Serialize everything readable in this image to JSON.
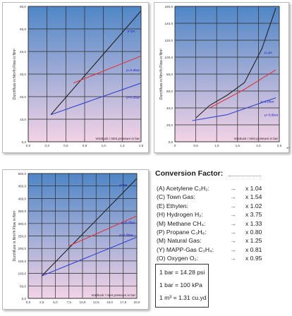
{
  "charts": [
    {
      "ylabel": "Durchfluss in Nm³/h Flow in Nm³",
      "xlabel": "Vordruck / Inlet pressure in bar",
      "x_ticks": [
        "0,0",
        "0,3",
        "0,5",
        "0,8",
        "1,0",
        "1,3",
        "1,5"
      ],
      "y_ticks": [
        "0,0",
        "10,0",
        "20,0",
        "30,0",
        "40,0",
        "50,0",
        "60,0"
      ],
      "series_labels": [
        "p=px",
        "p=0,6bar",
        "p=0,3bar"
      ]
    },
    {
      "ylabel": "Durchfluss in Nm³/h Flow in Nm³",
      "xlabel": "Vordruck / Inlet pressure in bar",
      "x_ticks": [
        "0",
        "0,5",
        "1,0",
        "1,5",
        "2,0",
        "2,5"
      ],
      "y_ticks": [
        "0,0",
        "20,0",
        "40,0",
        "60,0",
        "80,0",
        "100,0",
        "120,0",
        "140,0",
        "160,0"
      ],
      "series_labels": [
        "p=px",
        "p=1,0bar",
        "p=0,6bar"
      ]
    },
    {
      "ylabel": "Durchfluss in Nm³/h Flow in Nm³",
      "xlabel": "Vordruck / Inlet pressure in bar",
      "x_ticks": [
        "0,0",
        "2,5",
        "5,0",
        "7,5",
        "10,0",
        "12,5",
        "15,0",
        "17,5",
        "20,0"
      ],
      "y_ticks": [
        "0,0",
        "50,0",
        "100,0",
        "150,0",
        "200,0",
        "250,0",
        "300,0",
        "350,0",
        "400,0",
        "450,0",
        "500,0"
      ],
      "series_labels": [
        "p=px",
        "p=6,0bar",
        "p=2,5bar"
      ]
    }
  ],
  "chart_data": [
    {
      "type": "line",
      "xlim": [
        0,
        1.5
      ],
      "ylim": [
        0,
        60
      ],
      "series": [
        {
          "name": "p=px",
          "x": [
            0.3,
            1.5
          ],
          "y": [
            12,
            58
          ]
        },
        {
          "name": "p=0,6bar",
          "x": [
            0.6,
            1.5
          ],
          "y": [
            26,
            38
          ]
        },
        {
          "name": "p=0,3bar",
          "x": [
            0.3,
            1.5
          ],
          "y": [
            12,
            26
          ]
        }
      ]
    },
    {
      "type": "line",
      "xlim": [
        0,
        3
      ],
      "ylim": [
        0,
        160
      ],
      "series": [
        {
          "name": "p=px",
          "x": [
            0.6,
            1.0,
            1.5,
            2.0,
            2.5,
            2.9
          ],
          "y": [
            28,
            43,
            55,
            70,
            110,
            158
          ]
        },
        {
          "name": "p=1,0bar",
          "x": [
            1.0,
            2.0,
            2.9
          ],
          "y": [
            40,
            62,
            85
          ]
        },
        {
          "name": "p=0,6bar",
          "x": [
            0.5,
            1.5,
            2.9
          ],
          "y": [
            25,
            32,
            52
          ]
        }
      ]
    },
    {
      "type": "line",
      "xlim": [
        0,
        20
      ],
      "ylim": [
        0,
        500
      ],
      "series": [
        {
          "name": "p=px",
          "x": [
            2.5,
            20
          ],
          "y": [
            90,
            480
          ]
        },
        {
          "name": "p=6,0bar",
          "x": [
            7.5,
            20
          ],
          "y": [
            210,
            330
          ]
        },
        {
          "name": "p=2,5bar",
          "x": [
            2.5,
            20
          ],
          "y": [
            90,
            245
          ]
        }
      ]
    }
  ],
  "conversion": {
    "title": "Conversion Factor:",
    "gases": [
      {
        "code": "(A)",
        "name": "Acetylene C₂H₂",
        "factor": "x 1.04"
      },
      {
        "code": "(C)",
        "name": "Town Gas",
        "factor": "x 1.54"
      },
      {
        "code": "(E)",
        "name": "Ethylen",
        "factor": "x 1.02"
      },
      {
        "code": "(H)",
        "name": "Hydrogen H₂",
        "factor": "x 3.75"
      },
      {
        "code": "(M)",
        "name": "Methane CH₄",
        "factor": "x 1.33"
      },
      {
        "code": "(P)",
        "name": "Propane C₃H₈",
        "factor": "x 0.80"
      },
      {
        "code": "(M)",
        "name": "Natural Gas",
        "factor": "x 1.25"
      },
      {
        "code": "(Y)",
        "name": "MAPP-Gas C₃H₄",
        "factor": "x 0.81"
      },
      {
        "code": "(O)",
        "name": "Oxygen O₂",
        "factor": "x 0.95"
      }
    ],
    "arrow": "→",
    "units": [
      "1 bar = 14.28 psi",
      "1 bar = 100 kPa",
      "1 m³ = 1.31 cu.yd"
    ]
  },
  "colors": {
    "line_black": "#222222",
    "line_red": "#e0353d",
    "line_blue": "#3344cc",
    "fill_top": "#4f86c6",
    "fill_bottom": "#f3d3e6",
    "label_color": "#1a1acc"
  }
}
